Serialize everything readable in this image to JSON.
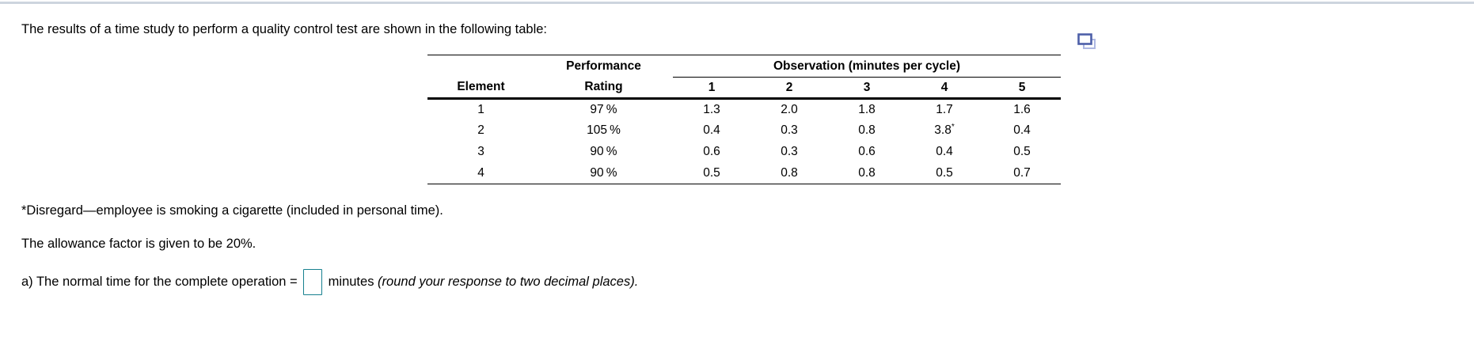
{
  "page": {
    "intro": "The results of a time study to perform a quality control test are shown in the following table:",
    "footnote": "*Disregard—employee is smoking a cigarette (included in personal time).",
    "allowance": "The allowance factor is given to be 20%.",
    "question_a": {
      "before_input": "a) The normal time for the complete operation =",
      "input_value": "",
      "after_input": "minutes",
      "after_input_italic": "(round your response to two decimal places)."
    }
  },
  "icons": {
    "popout": "enlarge-table-icon"
  },
  "colors": {
    "top_rule": "#cdd5de",
    "answer_box_border": "#17808f",
    "icon_front": "#4d5fa8",
    "icon_back": "#aeb8e2",
    "table_rule": "#000000",
    "text": "#000000"
  },
  "table": {
    "group_header_obs": "Observation (minutes per cycle)",
    "performance_header_top": "Performance",
    "element_header": "Element",
    "rating_header": "Rating",
    "obs_headers": [
      "1",
      "2",
      "3",
      "4",
      "5"
    ],
    "rows": [
      {
        "element": "1",
        "rating": "97 %",
        "obs": [
          "1.3",
          "2.0",
          "1.8",
          "1.7",
          "1.6"
        ]
      },
      {
        "element": "2",
        "rating": "105 %",
        "obs": [
          "0.4",
          "0.3",
          "0.8",
          "3.8*",
          "0.4"
        ]
      },
      {
        "element": "3",
        "rating": "90 %",
        "obs": [
          "0.6",
          "0.3",
          "0.6",
          "0.4",
          "0.5"
        ]
      },
      {
        "element": "4",
        "rating": "90 %",
        "obs": [
          "0.5",
          "0.8",
          "0.8",
          "0.5",
          "0.7"
        ]
      }
    ]
  }
}
